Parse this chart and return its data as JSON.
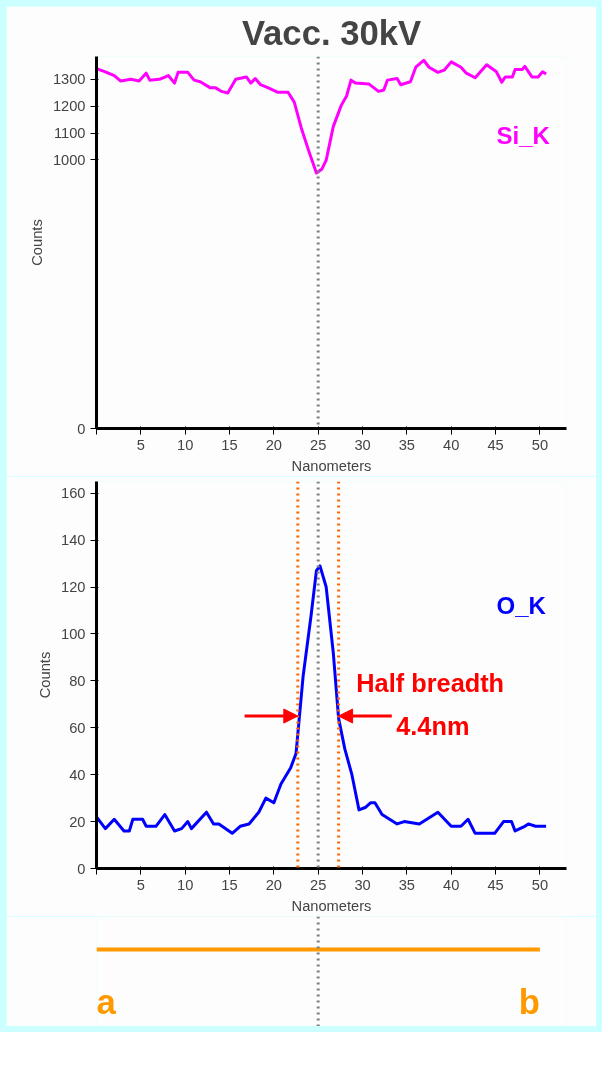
{
  "chart_data": [
    {
      "type": "line",
      "title": "Vacc. 30kV",
      "xlabel": "Nanometers",
      "ylabel": "Counts",
      "legend": false,
      "grid": false,
      "marker": "none",
      "line_style": "solid",
      "xlim": [
        0,
        53
      ],
      "xticks": [
        {
          "value": 0,
          "label": null
        },
        5,
        10,
        15,
        20,
        25,
        30,
        35,
        40,
        45,
        50
      ],
      "ylim": [
        0,
        1385
      ],
      "yticks": [
        0,
        1000,
        1100,
        1200,
        1300
      ],
      "ref_lines": [
        {
          "axis": "x",
          "value": 25,
          "label": null,
          "color": "#808080",
          "line_style": "dotted"
        }
      ],
      "series": [
        {
          "name": "Si_K",
          "color": "#ff00ff",
          "x": [
            0,
            1.0,
            2.0,
            2.7,
            3.9,
            4.8,
            5.6,
            6.0,
            7.1,
            8.1,
            8.8,
            9.2,
            10.3,
            11.0,
            11.7,
            12.8,
            13.4,
            14.1,
            14.8,
            15.7,
            16.9,
            17.4,
            17.9,
            18.5,
            19.5,
            20.4,
            21.6,
            22.3,
            23.1,
            24.0,
            24.8,
            25.4,
            25.9,
            26.7,
            27.6,
            28.2,
            28.7,
            29.2,
            30.7,
            31.8,
            32.4,
            32.8,
            33.9,
            34.3,
            35.4,
            36.0,
            36.9,
            37.5,
            38.5,
            39.2,
            40.0,
            41.1,
            41.7,
            42.7,
            44.0,
            45.1,
            45.7,
            46.1,
            46.9,
            47.2,
            48.0,
            48.3,
            49.1,
            49.8,
            50.3,
            50.7
          ],
          "values": [
            1340,
            1328,
            1314,
            1294,
            1300,
            1294,
            1323,
            1297,
            1300,
            1314,
            1286,
            1326,
            1326,
            1297,
            1291,
            1269,
            1269,
            1255,
            1249,
            1300,
            1309,
            1286,
            1303,
            1280,
            1266,
            1252,
            1252,
            1215,
            1118,
            1027,
            951,
            965,
            999,
            1124,
            1203,
            1238,
            1297,
            1286,
            1283,
            1255,
            1260,
            1297,
            1303,
            1280,
            1291,
            1345,
            1371,
            1345,
            1326,
            1334,
            1365,
            1345,
            1323,
            1306,
            1354,
            1328,
            1289,
            1309,
            1309,
            1337,
            1337,
            1348,
            1309,
            1309,
            1328,
            1320
          ]
        }
      ]
    },
    {
      "type": "line",
      "xlabel": "Nanometers",
      "ylabel": "Counts",
      "legend": false,
      "grid": false,
      "marker": "none",
      "line_style": "solid",
      "xlim": [
        0,
        53
      ],
      "xticks": [
        {
          "value": 0,
          "label": null
        },
        5,
        10,
        15,
        20,
        25,
        30,
        35,
        40,
        45,
        50
      ],
      "ylim": [
        0,
        165
      ],
      "yticks": [
        0,
        20,
        40,
        60,
        80,
        100,
        120,
        140,
        160
      ],
      "ref_lines": [
        {
          "axis": "x",
          "value": 25,
          "label": null,
          "color": "#808080",
          "line_style": "dotted"
        },
        {
          "axis": "x",
          "value": 22.7,
          "label": null,
          "color": "#ff6600",
          "line_style": "dotted"
        },
        {
          "axis": "x",
          "value": 27.3,
          "label": null,
          "color": "#ff6600",
          "line_style": "dotted"
        }
      ],
      "annotations": [
        {
          "text": "Half breadth 4.4nm",
          "x": 27.3,
          "y": 65
        },
        "a",
        "b"
      ],
      "series": [
        {
          "name": "O_K",
          "color": "#0000ff",
          "x": [
            0,
            1.0,
            2.0,
            3.1,
            3.7,
            4.1,
            5.2,
            5.6,
            6.7,
            7.7,
            8.8,
            9.6,
            10.3,
            10.7,
            12.4,
            13.2,
            13.8,
            15.3,
            16.2,
            17.2,
            18.3,
            19.1,
            20.0,
            20.8,
            21.9,
            22.5,
            23.3,
            24.2,
            24.8,
            25.2,
            25.9,
            26.7,
            27.3,
            28.0,
            28.8,
            29.6,
            30.3,
            30.9,
            31.4,
            32.2,
            33.9,
            34.7,
            36.4,
            38.5,
            40.0,
            41.1,
            41.9,
            42.7,
            44.9,
            45.9,
            46.8,
            47.2,
            48.3,
            48.7,
            49.5,
            50.7
          ],
          "values": [
            22,
            17,
            21,
            16,
            16,
            21,
            21,
            18,
            18,
            23,
            16,
            17,
            20,
            17,
            24,
            19,
            19,
            15,
            18,
            19,
            24,
            30,
            28,
            36,
            43,
            49,
            82,
            108,
            127,
            129,
            120,
            92,
            64,
            51,
            40,
            25,
            26,
            28,
            28,
            23,
            19,
            20,
            19,
            24,
            18,
            18,
            21,
            15,
            15,
            20,
            20,
            16,
            18,
            19,
            18,
            18
          ]
        }
      ]
    }
  ]
}
